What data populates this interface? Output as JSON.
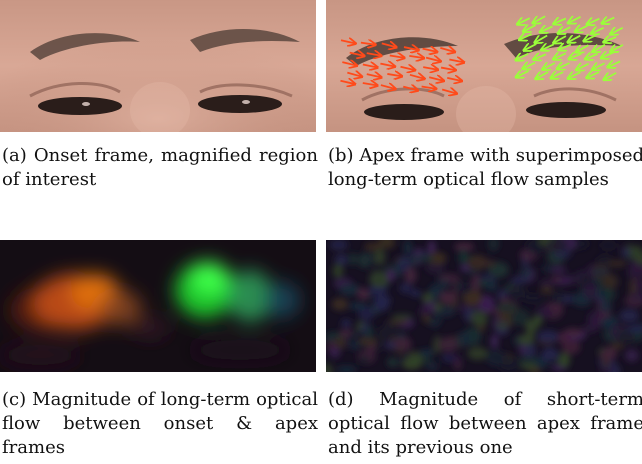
{
  "figure": {
    "panels": [
      {
        "id": "a",
        "label": "(a)",
        "caption": "Onset frame, magnified region of interest",
        "content": "face-crop-eyes"
      },
      {
        "id": "b",
        "label": "(b)",
        "caption": "Apex frame with superimposed long-term optical flow samples",
        "content": "face-crop-eyes-with-flow-arrows",
        "arrow_colors": {
          "left": "#ff4a1a",
          "right": "#9aff3a"
        }
      },
      {
        "id": "c",
        "label": "(c)",
        "caption": "Magnitude of long-term optical flow between onset & apex frames",
        "content": "flow-magnitude-map",
        "blob_colors": {
          "left": "#e0620e",
          "right": "#2bdc3a"
        }
      },
      {
        "id": "d",
        "label": "(d)",
        "caption": "Magnitude of short-term optical flow between apex frame and its previous one",
        "content": "noise-flow-map"
      }
    ]
  }
}
